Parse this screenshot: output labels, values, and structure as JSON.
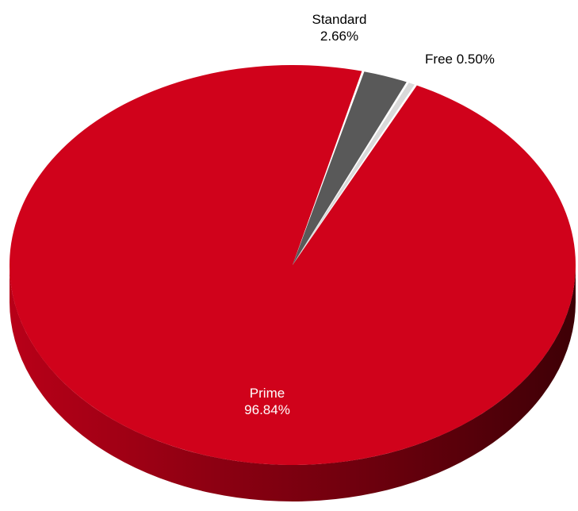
{
  "chart_data": {
    "type": "pie",
    "style": "3d",
    "title": "",
    "slices": [
      {
        "name": "Free",
        "value": 0.5,
        "display": "0.50%",
        "color": "#d9d9d9",
        "label_color": "#000000",
        "label_lines": [
          "Free 0.50%"
        ]
      },
      {
        "name": "Prime",
        "value": 96.84,
        "display": "96.84%",
        "color": "#d0021b",
        "label_color": "#ffffff",
        "label_lines": [
          "Prime",
          "96.84%"
        ]
      },
      {
        "name": "Standard",
        "value": 2.66,
        "display": "2.66%",
        "color": "#595959",
        "label_color": "#000000",
        "label_lines": [
          "Standard",
          "2.66%"
        ]
      }
    ],
    "legend": "none"
  }
}
